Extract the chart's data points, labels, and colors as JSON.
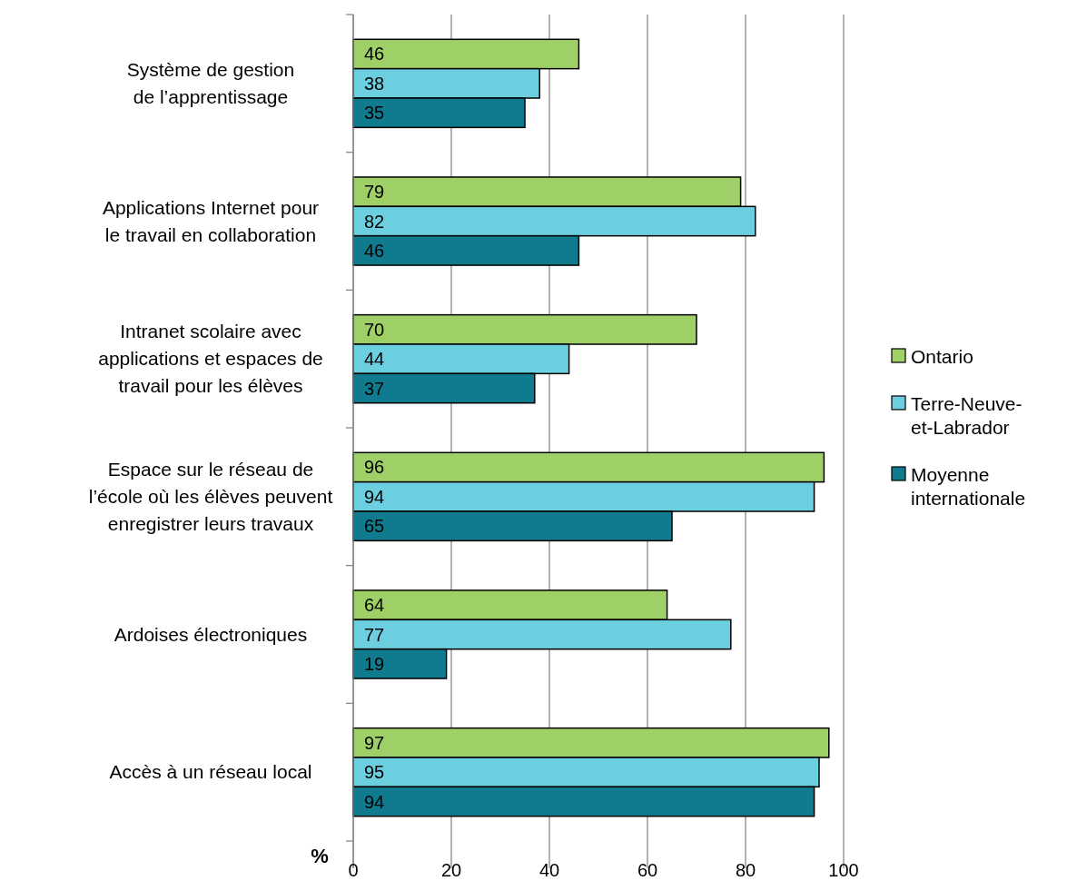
{
  "chart_data": {
    "type": "bar",
    "orientation": "horizontal",
    "xlabel": "%",
    "categories": [
      "Système de gestion\nde l’apprentissage",
      "Applications Internet pour\nle travail en collaboration",
      "Intranet scolaire avec\napplications et espaces de\ntravail pour les élèves",
      "Espace sur le réseau de\nl’école où les élèves peuvent\nenregistrer leurs travaux",
      "Ardoises électroniques",
      "Accès à un réseau local"
    ],
    "series": [
      {
        "name": "Ontario",
        "color": "#9fd067",
        "values": [
          46,
          79,
          70,
          96,
          64,
          97
        ]
      },
      {
        "name": "Terre-Neuve-et-Labrador",
        "color": "#6ccfdf",
        "values": [
          38,
          82,
          44,
          94,
          77,
          95
        ]
      },
      {
        "name": "Moyenne internationale",
        "color": "#107b8e",
        "values": [
          35,
          46,
          37,
          65,
          19,
          94
        ]
      }
    ],
    "xlim": [
      0,
      100
    ],
    "xticks": [
      0,
      20,
      40,
      60,
      80,
      100
    ],
    "grid": "x",
    "legend": "right",
    "data_labels": true
  }
}
